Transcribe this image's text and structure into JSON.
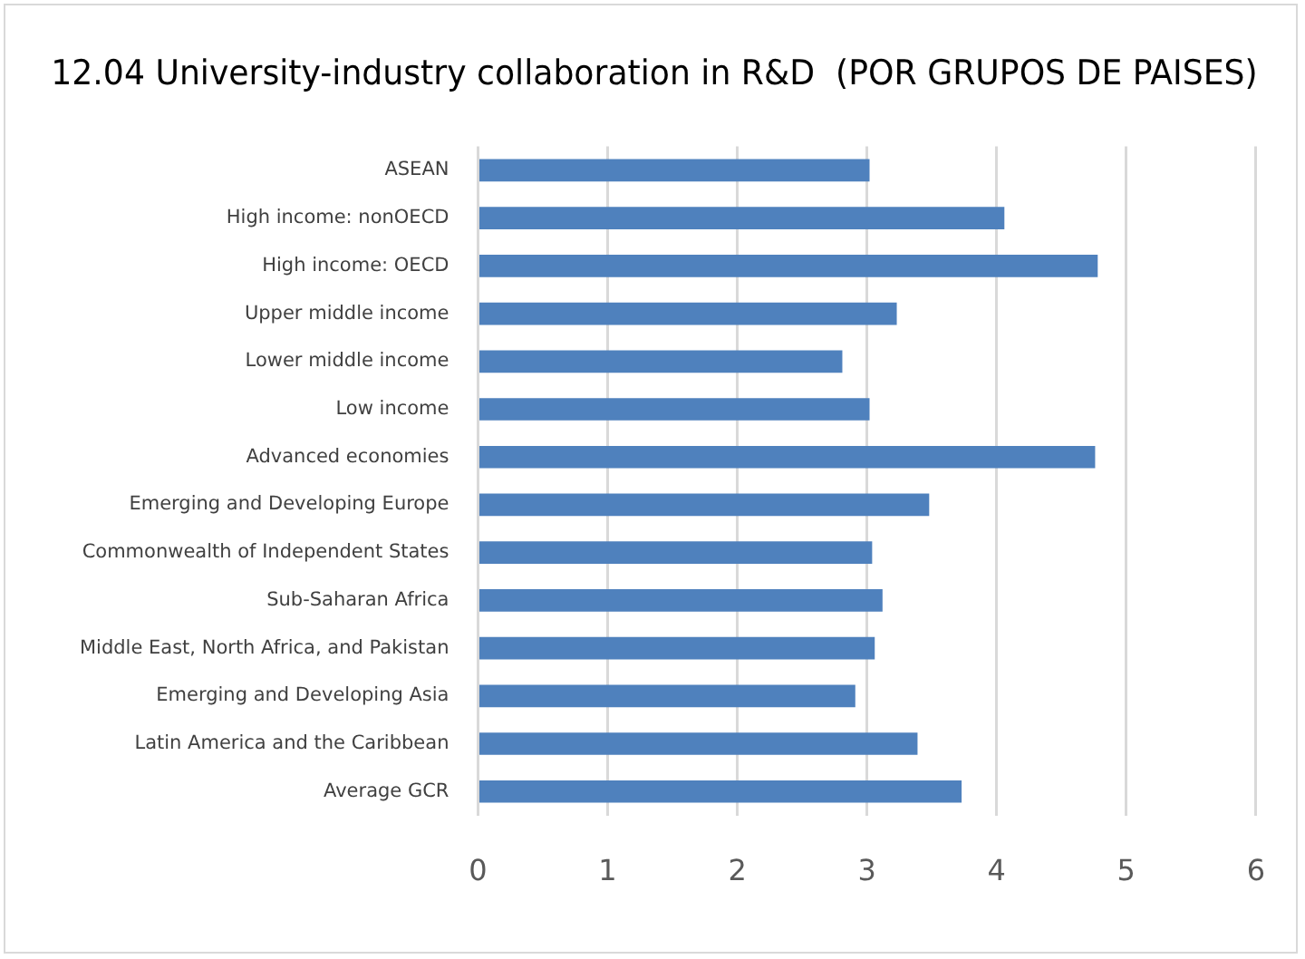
{
  "chart_data": {
    "type": "bar",
    "orientation": "horizontal",
    "title": "12.04 University-industry collaboration in R&D  (POR GRUPOS DE PAISES)",
    "categories": [
      "ASEAN",
      "High income: nonOECD",
      "High income: OECD",
      "Upper middle income",
      "Lower middle income",
      "Low income",
      "Advanced economies",
      "Emerging and Developing Europe",
      "Commonwealth of Independent States",
      "Sub-Saharan Africa",
      "Middle East, North Africa, and Pakistan",
      "Emerging and Developing Asia",
      "Latin America and the Caribbean",
      "Average GCR"
    ],
    "values": [
      3.02,
      4.06,
      4.78,
      3.23,
      2.81,
      3.02,
      4.76,
      3.48,
      3.04,
      3.12,
      3.06,
      2.91,
      3.39,
      3.73
    ],
    "color": "#4f81bd",
    "xlim": [
      0,
      6
    ],
    "xticks": [
      0,
      1,
      2,
      3,
      4,
      5,
      6
    ],
    "grid": "x",
    "legend": false
  }
}
